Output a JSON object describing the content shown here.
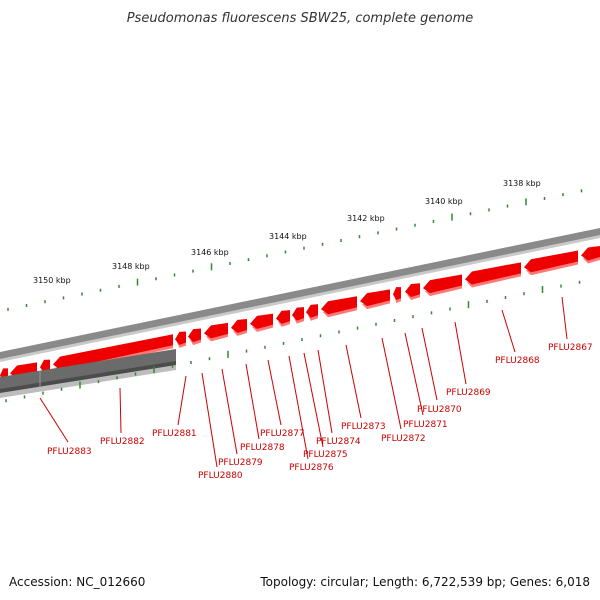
{
  "title": "Pseudomonas fluorescens SBW25, complete genome",
  "footer": {
    "accession": "Accession: NC_012660",
    "summary": "Topology: circular; Length: 6,722,539 bp; Genes: 6,018"
  },
  "colors": {
    "gene_fill": "#ee0000",
    "gene_shadow": "#ff6b6b",
    "backbone_dark": "#7a7a7a",
    "backbone_light": "#bdbdbd",
    "tick_green": "#2e8b2e",
    "label_red": "#cc0000",
    "selected_gray": "#555555"
  },
  "kbp_labels": [
    "3150 kbp",
    "3148 kbp",
    "3146 kbp",
    "3144 kbp",
    "3142 kbp",
    "3140 kbp",
    "3138 kbp"
  ],
  "genes": [
    "PFLU2867",
    "PFLU2868",
    "PFLU2869",
    "PFLU2870",
    "PFLU2871",
    "PFLU2872",
    "PFLU2873",
    "PFLU2874",
    "PFLU2875",
    "PFLU2876",
    "PFLU2877",
    "PFLU2878",
    "PFLU2879",
    "PFLU2880",
    "PFLU2881",
    "PFLU2882",
    "PFLU2883"
  ]
}
